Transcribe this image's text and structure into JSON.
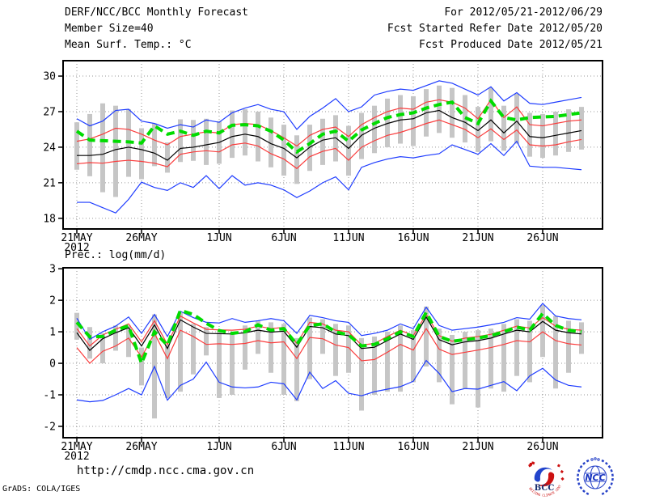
{
  "header": {
    "title": "DERF/NCC/BCC Monthly Forecast",
    "member_size": "Member Size=40",
    "for_range": "For 2012/05/21-2012/06/29",
    "fcst_refer": "Fcst Started Refer Date 2012/05/20",
    "fcst_produced": "Fcst Produced Date 2012/05/21"
  },
  "footer": {
    "url": "http://cmdp.ncc.cma.gov.cn",
    "grads_credit": "GrADS: COLA/IGES",
    "bcc_logo_text": "BCC",
    "bcc_logo_arc_text": "BEIJING CLIMATE CENTER",
    "ncc_logo_text": "NCC"
  },
  "colors": {
    "line_blue": "#1e3cff",
    "line_red": "#fa3c3c",
    "line_black": "#000000",
    "line_green": "#00dc00",
    "spread_bar": "#c6c6c6",
    "grid": "#969696",
    "axis": "#000000"
  },
  "chart_data": [
    {
      "id": "surface-temperature-forecast",
      "type": "line",
      "title": "Mean Surf. Temp.: °C",
      "ylim": [
        17.1,
        31.3
      ],
      "yticks": [
        30,
        27,
        24,
        21,
        18
      ],
      "grid": true,
      "day_step": 16,
      "xticks": [
        {
          "label": "21MAY",
          "day": 0,
          "sublabel": "2012"
        },
        {
          "label": "26MAY",
          "day": 5
        },
        {
          "label": "1JUN",
          "day": 11
        },
        {
          "label": "6JUN",
          "day": 16
        },
        {
          "label": "11JUN",
          "day": 21
        },
        {
          "label": "16JUN",
          "day": 26
        },
        {
          "label": "21JUN",
          "day": 31
        },
        {
          "label": "26JUN",
          "day": 36
        }
      ],
      "spread_bars": [
        [
          22.1,
          26.1
        ],
        [
          21.55,
          26.8
        ],
        [
          20.2,
          27.7
        ],
        [
          19.8,
          27.5
        ],
        [
          21.5,
          27.2
        ],
        [
          21.3,
          25.6
        ],
        [
          22.4,
          26.0
        ],
        [
          21.85,
          24.4
        ],
        [
          22.75,
          26.35
        ],
        [
          22.85,
          26.3
        ],
        [
          22.5,
          26.4
        ],
        [
          22.6,
          26.2
        ],
        [
          23.1,
          27.1
        ],
        [
          23.3,
          27.2
        ],
        [
          22.8,
          27.0
        ],
        [
          22.3,
          26.5
        ],
        [
          21.6,
          25.9
        ],
        [
          20.9,
          25.0
        ],
        [
          22.0,
          25.9
        ],
        [
          22.5,
          26.4
        ],
        [
          22.8,
          26.7
        ],
        [
          21.6,
          25.8
        ],
        [
          23.0,
          26.9
        ],
        [
          23.5,
          27.5
        ],
        [
          24.0,
          28.1
        ],
        [
          24.3,
          28.4
        ],
        [
          24.1,
          28.3
        ],
        [
          24.9,
          28.9
        ],
        [
          25.2,
          29.2
        ],
        [
          24.8,
          29.0
        ],
        [
          24.4,
          28.4
        ],
        [
          23.6,
          27.4
        ],
        [
          24.5,
          29.0
        ],
        [
          23.7,
          27.5
        ],
        [
          24.3,
          28.5
        ],
        [
          23.2,
          26.9
        ],
        [
          23.1,
          26.8
        ],
        [
          23.3,
          27.0
        ],
        [
          23.6,
          27.2
        ],
        [
          23.8,
          27.4
        ]
      ],
      "series": [
        {
          "name": "ensemble-minimum",
          "color": "#1e3cff",
          "width": 1.2,
          "dash": "",
          "values": [
            19.35,
            19.35,
            18.9,
            18.45,
            19.6,
            21.05,
            20.6,
            20.35,
            21.0,
            20.6,
            21.6,
            20.5,
            21.6,
            20.8,
            21.0,
            20.8,
            20.4,
            19.75,
            20.3,
            21.0,
            21.5,
            20.4,
            22.3,
            22.7,
            23.0,
            23.2,
            23.1,
            23.3,
            23.45,
            24.2,
            23.8,
            23.4,
            24.3,
            23.3,
            24.5,
            22.4,
            22.3,
            22.3,
            22.2,
            22.1
          ]
        },
        {
          "name": "ensemble-maximum",
          "color": "#1e3cff",
          "width": 1.2,
          "dash": "",
          "values": [
            26.4,
            25.8,
            26.2,
            27.1,
            27.2,
            26.2,
            26.0,
            25.6,
            25.9,
            25.7,
            26.3,
            26.1,
            26.9,
            27.3,
            27.6,
            27.2,
            27.0,
            25.5,
            26.6,
            27.3,
            28.1,
            27.0,
            27.4,
            28.4,
            28.7,
            28.9,
            28.8,
            29.2,
            29.6,
            29.4,
            28.9,
            28.4,
            29.1,
            27.9,
            28.6,
            27.7,
            27.6,
            27.8,
            28.0,
            28.2
          ]
        },
        {
          "name": "ensemble-lower",
          "color": "#fa3c3c",
          "width": 1.2,
          "dash": "",
          "values": [
            22.6,
            22.7,
            22.65,
            22.8,
            22.9,
            22.8,
            22.65,
            22.35,
            23.4,
            23.6,
            23.7,
            23.6,
            24.2,
            24.35,
            24.1,
            23.45,
            23.0,
            22.2,
            23.2,
            23.65,
            23.9,
            22.9,
            24.0,
            24.55,
            25.0,
            25.25,
            25.6,
            26.0,
            26.3,
            25.9,
            25.5,
            24.8,
            25.55,
            24.65,
            25.45,
            24.2,
            24.1,
            24.2,
            24.45,
            24.65
          ]
        },
        {
          "name": "ensemble-upper",
          "color": "#fa3c3c",
          "width": 1.2,
          "dash": "",
          "values": [
            24.5,
            24.7,
            25.1,
            25.6,
            25.5,
            25.1,
            24.6,
            24.2,
            24.9,
            25.1,
            25.3,
            25.2,
            25.9,
            26.0,
            25.9,
            25.4,
            24.8,
            24.1,
            25.0,
            25.5,
            25.7,
            24.9,
            25.9,
            26.5,
            27.0,
            27.3,
            27.2,
            27.8,
            28.0,
            27.8,
            27.3,
            26.4,
            28.0,
            26.5,
            27.4,
            25.9,
            25.8,
            26.0,
            26.2,
            26.3
          ]
        },
        {
          "name": "ensemble-mean",
          "color": "#000000",
          "width": 1.2,
          "dash": "",
          "values": [
            23.3,
            23.3,
            23.4,
            23.8,
            24.0,
            23.8,
            23.5,
            22.9,
            23.9,
            24.0,
            24.2,
            24.4,
            24.9,
            25.1,
            24.9,
            24.3,
            23.9,
            23.1,
            24.0,
            24.6,
            24.8,
            23.9,
            25.0,
            25.6,
            26.0,
            26.3,
            26.4,
            26.9,
            27.1,
            26.5,
            26.1,
            25.4,
            26.3,
            25.2,
            26.2,
            24.9,
            24.8,
            25.0,
            25.2,
            25.4
          ]
        },
        {
          "name": "ensemble-median-dashed",
          "color": "#00dc00",
          "width": 4,
          "dash": "10 6",
          "values": [
            25.35,
            24.6,
            24.55,
            24.5,
            24.45,
            24.35,
            25.8,
            25.1,
            25.35,
            25.0,
            25.35,
            25.2,
            25.85,
            25.9,
            25.8,
            25.35,
            24.6,
            23.6,
            24.3,
            25.1,
            25.35,
            24.5,
            25.45,
            26.0,
            26.5,
            26.75,
            26.9,
            27.3,
            27.6,
            27.8,
            26.5,
            26.0,
            27.9,
            26.5,
            26.3,
            26.5,
            26.55,
            26.6,
            26.75,
            26.9
          ]
        }
      ]
    },
    {
      "id": "precipitation-forecast",
      "type": "line",
      "title": "Prec.: log(mm/d)",
      "ylim": [
        -2.36,
        3.03
      ],
      "yticks": [
        3,
        2,
        1,
        0,
        -1,
        -2
      ],
      "grid": true,
      "day_step": 16,
      "xticks": [
        {
          "label": "21MAY",
          "day": 0,
          "sublabel": "2012"
        },
        {
          "label": "26MAY",
          "day": 5
        },
        {
          "label": "1JUN",
          "day": 11
        },
        {
          "label": "6JUN",
          "day": 16
        },
        {
          "label": "11JUN",
          "day": 21
        },
        {
          "label": "16JUN",
          "day": 26
        },
        {
          "label": "21JUN",
          "day": 31
        },
        {
          "label": "26JUN",
          "day": 36
        }
      ],
      "spread_bars": [
        [
          0.75,
          1.6
        ],
        [
          0.15,
          1.15
        ],
        [
          0.0,
          0.95
        ],
        [
          0.4,
          1.2
        ],
        [
          0.2,
          1.2
        ],
        [
          -0.7,
          0.5
        ],
        [
          -1.75,
          1.55
        ],
        [
          -1.1,
          0.6
        ],
        [
          -0.9,
          1.6
        ],
        [
          -0.35,
          1.25
        ],
        [
          0.25,
          1.15
        ],
        [
          -1.1,
          1.0
        ],
        [
          -1.0,
          1.0
        ],
        [
          -0.2,
          1.2
        ],
        [
          0.3,
          1.35
        ],
        [
          -0.3,
          1.3
        ],
        [
          -1.0,
          1.25
        ],
        [
          -1.2,
          0.8
        ],
        [
          -0.5,
          1.45
        ],
        [
          0.3,
          1.4
        ],
        [
          -0.4,
          1.25
        ],
        [
          -0.3,
          1.2
        ],
        [
          -1.5,
          0.8
        ],
        [
          -1.0,
          0.85
        ],
        [
          -0.9,
          1.0
        ],
        [
          -0.9,
          1.2
        ],
        [
          -0.6,
          1.05
        ],
        [
          -0.1,
          1.8
        ],
        [
          -0.6,
          1.1
        ],
        [
          -1.3,
          0.9
        ],
        [
          -0.8,
          1.0
        ],
        [
          -1.4,
          1.05
        ],
        [
          -0.8,
          1.1
        ],
        [
          -0.9,
          1.25
        ],
        [
          -0.4,
          1.4
        ],
        [
          -0.6,
          1.35
        ],
        [
          0.2,
          1.85
        ],
        [
          -0.8,
          1.5
        ],
        [
          -0.3,
          1.35
        ],
        [
          0.3,
          1.3
        ]
      ],
      "series": [
        {
          "name": "ensemble-minimum",
          "color": "#1e3cff",
          "width": 1.2,
          "dash": "",
          "values": [
            -1.16,
            -1.22,
            -1.18,
            -1.0,
            -0.8,
            -1.0,
            -0.1,
            -1.17,
            -0.7,
            -0.5,
            0.04,
            -0.6,
            -0.75,
            -0.78,
            -0.75,
            -0.6,
            -0.65,
            -1.16,
            -0.28,
            -0.8,
            -0.55,
            -0.95,
            -1.03,
            -0.9,
            -0.82,
            -0.74,
            -0.57,
            0.09,
            -0.32,
            -0.9,
            -0.8,
            -0.82,
            -0.7,
            -0.58,
            -0.87,
            -0.4,
            -0.16,
            -0.53,
            -0.7,
            -0.75
          ]
        },
        {
          "name": "ensemble-maximum",
          "color": "#1e3cff",
          "width": 1.2,
          "dash": "",
          "values": [
            1.43,
            0.76,
            1.0,
            1.18,
            1.47,
            0.95,
            1.55,
            0.85,
            1.65,
            1.45,
            1.3,
            1.28,
            1.42,
            1.3,
            1.35,
            1.42,
            1.35,
            0.95,
            1.52,
            1.45,
            1.35,
            1.3,
            0.88,
            0.95,
            1.05,
            1.25,
            1.1,
            1.78,
            1.2,
            1.05,
            1.1,
            1.15,
            1.22,
            1.3,
            1.45,
            1.4,
            1.9,
            1.5,
            1.42,
            1.38
          ]
        },
        {
          "name": "ensemble-lower",
          "color": "#fa3c3c",
          "width": 1.2,
          "dash": "",
          "values": [
            0.5,
            0.0,
            0.38,
            0.55,
            0.8,
            0.2,
            0.95,
            0.15,
            1.05,
            0.85,
            0.6,
            0.62,
            0.6,
            0.63,
            0.72,
            0.65,
            0.68,
            0.15,
            0.82,
            0.78,
            0.58,
            0.5,
            0.08,
            0.12,
            0.35,
            0.6,
            0.42,
            1.1,
            0.45,
            0.28,
            0.35,
            0.42,
            0.5,
            0.6,
            0.72,
            0.68,
            1.0,
            0.72,
            0.62,
            0.58
          ]
        },
        {
          "name": "ensemble-upper",
          "color": "#fa3c3c",
          "width": 1.2,
          "dash": "",
          "values": [
            1.1,
            0.55,
            0.9,
            1.08,
            1.25,
            0.68,
            1.35,
            0.6,
            1.5,
            1.28,
            1.08,
            1.06,
            1.05,
            1.08,
            1.18,
            1.1,
            1.14,
            0.63,
            1.3,
            1.25,
            1.05,
            1.0,
            0.58,
            0.63,
            0.85,
            1.05,
            0.88,
            1.55,
            0.88,
            0.7,
            0.8,
            0.85,
            0.92,
            1.05,
            1.18,
            1.12,
            1.45,
            1.18,
            1.08,
            1.05
          ]
        },
        {
          "name": "ensemble-mean",
          "color": "#000000",
          "width": 1.2,
          "dash": "",
          "values": [
            0.97,
            0.41,
            0.78,
            0.97,
            1.13,
            0.55,
            1.22,
            0.47,
            1.38,
            1.15,
            0.95,
            0.94,
            0.93,
            0.97,
            1.05,
            0.99,
            1.02,
            0.51,
            1.17,
            1.13,
            0.93,
            0.88,
            0.47,
            0.51,
            0.72,
            0.93,
            0.76,
            1.47,
            0.75,
            0.59,
            0.68,
            0.72,
            0.8,
            0.93,
            1.05,
            1.0,
            1.33,
            1.05,
            0.97,
            0.93
          ]
        },
        {
          "name": "ensemble-median-dashed",
          "color": "#00dc00",
          "width": 4,
          "dash": "10 6",
          "values": [
            1.3,
            0.84,
            0.85,
            1.05,
            1.19,
            0.0,
            1.0,
            0.57,
            1.68,
            1.55,
            1.27,
            1.04,
            0.95,
            1.0,
            1.22,
            1.05,
            1.1,
            0.6,
            1.2,
            1.25,
            1.0,
            0.9,
            0.55,
            0.6,
            0.78,
            1.0,
            0.85,
            1.62,
            0.85,
            0.7,
            0.75,
            0.8,
            0.88,
            1.0,
            1.15,
            1.05,
            1.58,
            1.2,
            1.05,
            1.0
          ]
        }
      ]
    }
  ]
}
